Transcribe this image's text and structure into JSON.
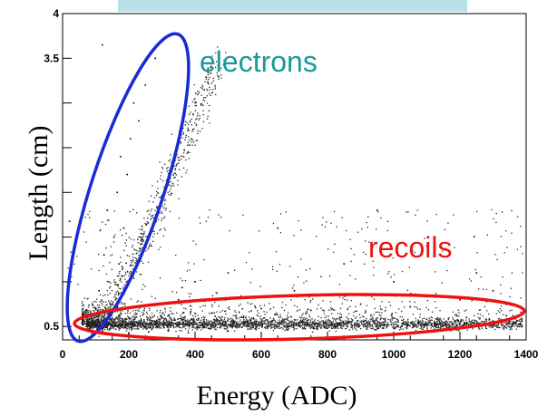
{
  "colors": {
    "banner": "#b9e2e6",
    "electrons": "#1a2bd6",
    "recoils": "#ee1111",
    "electrons_label": "#1a9a9a",
    "recoils_label": "#ee1111",
    "points": "#000000"
  },
  "chart_data": {
    "type": "scatter",
    "title": "",
    "xlabel": "Energy (ADC)",
    "ylabel": "Length (cm)",
    "xlim": [
      0,
      1400
    ],
    "ylim": [
      0.35,
      4.0
    ],
    "x_ticks": [
      "0",
      "200",
      "400",
      "600",
      "800",
      "1000",
      "1200",
      "1400"
    ],
    "y_tick_labels": [
      {
        "value": 0.5,
        "label": "0.5"
      },
      {
        "value": 3.5,
        "label": "3.5"
      },
      {
        "value": 4.0,
        "label": "4"
      }
    ],
    "grid": false,
    "annotations": [
      {
        "text": "electrons",
        "region": {
          "shape": "ellipse",
          "x_range": [
            40,
            320
          ],
          "y_range": [
            0.38,
            3.78
          ]
        }
      },
      {
        "text": "recoils",
        "region": {
          "shape": "ellipse",
          "x_range": [
            40,
            1400
          ],
          "y_range": [
            0.38,
            0.92
          ]
        }
      }
    ],
    "series": [
      {
        "points": [
          [
            120,
            0.45
          ],
          [
            150,
            0.5
          ],
          [
            180,
            0.55
          ],
          [
            200,
            0.6
          ],
          [
            130,
            0.7
          ],
          [
            160,
            0.8
          ],
          [
            110,
            0.9
          ],
          [
            140,
            1.0
          ],
          [
            170,
            1.2
          ],
          [
            125,
            1.3
          ],
          [
            155,
            1.5
          ],
          [
            185,
            1.6
          ],
          [
            135,
            1.8
          ],
          [
            165,
            2.0
          ],
          [
            195,
            2.2
          ],
          [
            175,
            2.4
          ],
          [
            205,
            2.6
          ],
          [
            230,
            2.8
          ],
          [
            215,
            3.0
          ],
          [
            250,
            3.2
          ],
          [
            120,
            3.65
          ],
          [
            240,
            3.4
          ],
          [
            280,
            3.5
          ],
          [
            200,
            0.42
          ],
          [
            260,
            0.44
          ],
          [
            320,
            0.46
          ],
          [
            380,
            0.43
          ],
          [
            440,
            0.48
          ],
          [
            500,
            0.45
          ],
          [
            560,
            0.47
          ],
          [
            620,
            0.5
          ],
          [
            680,
            0.46
          ],
          [
            740,
            0.52
          ],
          [
            800,
            0.48
          ],
          [
            860,
            0.5
          ],
          [
            920,
            0.55
          ],
          [
            980,
            0.5
          ],
          [
            1040,
            0.53
          ],
          [
            1100,
            0.58
          ],
          [
            1160,
            0.52
          ],
          [
            1220,
            0.6
          ],
          [
            1280,
            0.56
          ],
          [
            1340,
            0.62
          ],
          [
            300,
            0.6
          ],
          [
            450,
            0.65
          ],
          [
            600,
            0.7
          ],
          [
            750,
            0.68
          ],
          [
            900,
            0.75
          ],
          [
            1050,
            0.72
          ],
          [
            1200,
            0.8
          ],
          [
            350,
            0.8
          ],
          [
            700,
            0.9
          ],
          [
            1000,
            1.0
          ],
          [
            500,
            1.1
          ],
          [
            850,
            1.2
          ],
          [
            1100,
            1.4
          ],
          [
            650,
            1.6
          ],
          [
            950,
            1.8
          ],
          [
            1250,
            1.1
          ],
          [
            400,
            1.0
          ],
          [
            1300,
            0.9
          ]
        ]
      }
    ]
  },
  "electrons_label": "electrons",
  "recoils_label": "recoils"
}
